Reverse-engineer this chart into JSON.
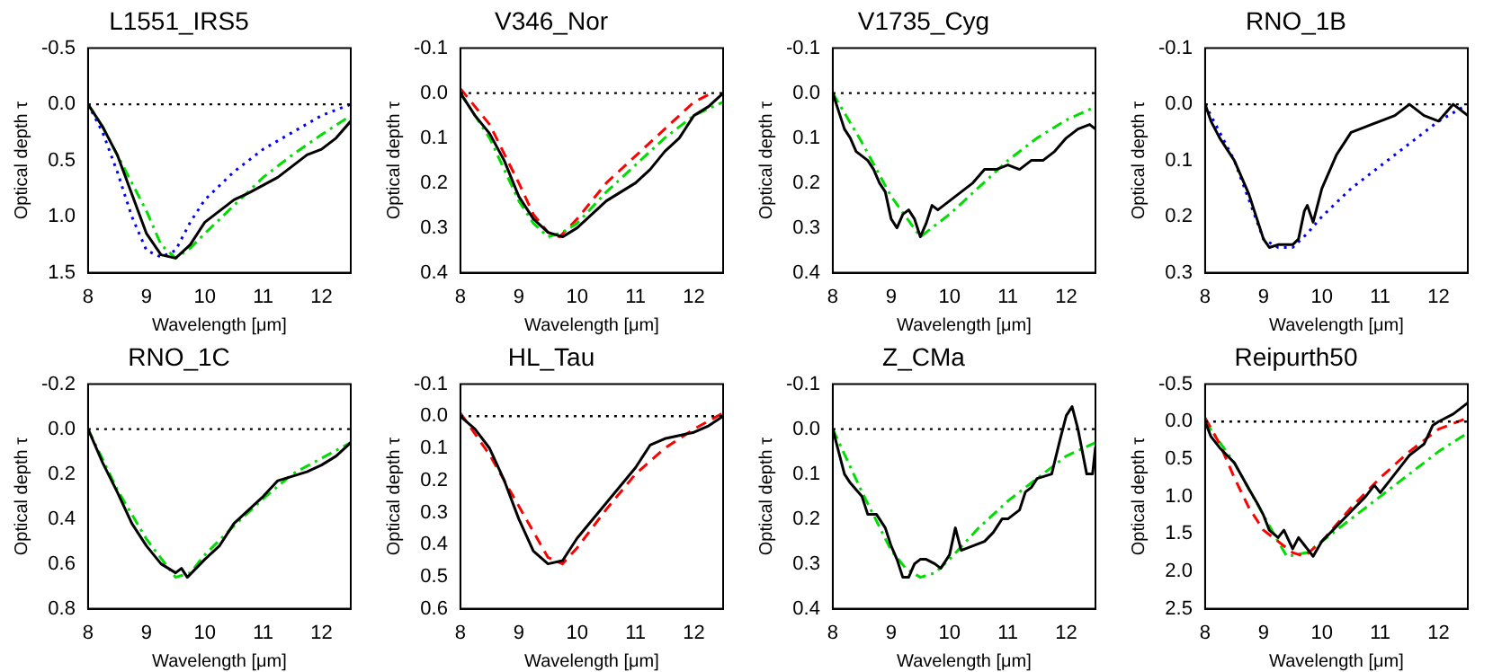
{
  "chart_data": [
    {
      "type": "line",
      "title": "L1551_IRS5",
      "xlabel": "Wavelength [μm]",
      "ylabel": "Optical depth τ",
      "xlim": [
        8,
        12.5
      ],
      "xticks": [
        8,
        9,
        10,
        11,
        12
      ],
      "ylim": [
        1.5,
        -0.5
      ],
      "yticks": [
        -0.5,
        {
          "value": 0,
          "label": "0.0"
        },
        0.5,
        {
          "value": 1,
          "label": "1.0"
        },
        1.5
      ],
      "grid": false,
      "ref_lines": [
        {
          "axis": "y",
          "value": 0,
          "color": "#000000",
          "line_style": "dotted"
        }
      ],
      "series": [
        {
          "color": "#000000",
          "line_style": "solid",
          "x": [
            8,
            8.25,
            8.5,
            8.75,
            9,
            9.25,
            9.5,
            9.75,
            10,
            10.25,
            10.5,
            10.75,
            11,
            11.25,
            11.5,
            11.75,
            12,
            12.25,
            12.5
          ],
          "values": [
            0,
            0.2,
            0.45,
            0.8,
            1.15,
            1.34,
            1.37,
            1.25,
            1.05,
            0.95,
            0.85,
            0.79,
            0.72,
            0.65,
            0.55,
            0.45,
            0.4,
            0.3,
            0.15
          ]
        },
        {
          "color": "#00dd00",
          "line_style": "dashdot",
          "x": [
            8,
            8.25,
            8.5,
            8.75,
            9,
            9.25,
            9.5,
            9.75,
            10,
            10.5,
            11,
            11.5,
            12,
            12.5
          ],
          "values": [
            0,
            0.2,
            0.45,
            0.7,
            0.95,
            1.25,
            1.37,
            1.28,
            1.15,
            0.9,
            0.65,
            0.45,
            0.27,
            0.1
          ]
        },
        {
          "color": "#0000ff",
          "line_style": "dotted",
          "x": [
            8,
            8.25,
            8.5,
            8.75,
            9,
            9.25,
            9.5,
            9.75,
            10,
            10.5,
            11,
            11.5,
            12,
            12.5
          ],
          "values": [
            0,
            0.25,
            0.6,
            1.0,
            1.3,
            1.36,
            1.3,
            1.05,
            0.85,
            0.6,
            0.4,
            0.25,
            0.1,
            0
          ]
        }
      ]
    },
    {
      "type": "line",
      "title": "V346_Nor",
      "xlabel": "Wavelength [μm]",
      "ylabel": "Optical depth τ",
      "xlim": [
        8,
        12.5
      ],
      "xticks": [
        8,
        9,
        10,
        11,
        12
      ],
      "ylim": [
        0.4,
        -0.1
      ],
      "yticks": [
        -0.1,
        {
          "value": 0,
          "label": "0.0"
        },
        0.1,
        0.2,
        0.3,
        0.4
      ],
      "grid": false,
      "ref_lines": [
        {
          "axis": "y",
          "value": 0,
          "color": "#000000",
          "line_style": "dotted"
        }
      ],
      "series": [
        {
          "color": "#000000",
          "line_style": "solid",
          "x": [
            8,
            8.25,
            8.5,
            8.75,
            9,
            9.25,
            9.5,
            9.75,
            10,
            10.25,
            10.5,
            10.75,
            11,
            11.25,
            11.5,
            11.75,
            12,
            12.25,
            12.5
          ],
          "values": [
            0,
            0.05,
            0.09,
            0.15,
            0.23,
            0.28,
            0.31,
            0.32,
            0.3,
            0.27,
            0.24,
            0.22,
            0.2,
            0.17,
            0.13,
            0.1,
            0.05,
            0.03,
            0
          ]
        },
        {
          "color": "#00dd00",
          "line_style": "dashdot",
          "x": [
            8,
            8.5,
            9,
            9.25,
            9.5,
            9.75,
            10,
            10.5,
            11,
            11.5,
            12,
            12.5
          ],
          "values": [
            0,
            0.1,
            0.24,
            0.29,
            0.32,
            0.31,
            0.29,
            0.22,
            0.16,
            0.1,
            0.05,
            0.02
          ]
        },
        {
          "color": "#ff0000",
          "line_style": "dashed",
          "x": [
            8,
            8.5,
            9,
            9.25,
            9.5,
            9.7,
            10,
            10.5,
            11,
            11.5,
            12,
            12.3
          ],
          "values": [
            -0.01,
            0.07,
            0.2,
            0.27,
            0.31,
            0.32,
            0.28,
            0.2,
            0.14,
            0.08,
            0.02,
            0
          ]
        }
      ]
    },
    {
      "type": "line",
      "title": "V1735_Cyg",
      "xlabel": "Wavelength [μm]",
      "ylabel": "Optical depth τ",
      "xlim": [
        8,
        12.5
      ],
      "xticks": [
        8,
        9,
        10,
        11,
        12
      ],
      "ylim": [
        0.4,
        -0.1
      ],
      "yticks": [
        -0.1,
        {
          "value": 0,
          "label": "0.0"
        },
        0.1,
        0.2,
        0.3,
        0.4
      ],
      "grid": false,
      "ref_lines": [
        {
          "axis": "y",
          "value": 0,
          "color": "#000000",
          "line_style": "dotted"
        }
      ],
      "series": [
        {
          "color": "#000000",
          "line_style": "solid",
          "x": [
            8,
            8.1,
            8.2,
            8.3,
            8.4,
            8.5,
            8.6,
            8.7,
            8.8,
            8.9,
            9,
            9.1,
            9.2,
            9.3,
            9.4,
            9.5,
            9.6,
            9.7,
            9.8,
            9.9,
            10,
            10.2,
            10.4,
            10.6,
            10.8,
            11,
            11.2,
            11.4,
            11.6,
            11.8,
            12,
            12.2,
            12.4,
            12.5
          ],
          "values": [
            0,
            0.04,
            0.08,
            0.1,
            0.13,
            0.14,
            0.15,
            0.17,
            0.2,
            0.22,
            0.28,
            0.3,
            0.27,
            0.26,
            0.28,
            0.32,
            0.29,
            0.25,
            0.26,
            0.25,
            0.24,
            0.22,
            0.2,
            0.17,
            0.17,
            0.16,
            0.17,
            0.15,
            0.15,
            0.13,
            0.1,
            0.08,
            0.07,
            0.08
          ]
        },
        {
          "color": "#00dd00",
          "line_style": "dashdot",
          "x": [
            8,
            8.5,
            9,
            9.5,
            10,
            10.5,
            11,
            11.5,
            12,
            12.5
          ],
          "values": [
            0,
            0.11,
            0.23,
            0.32,
            0.27,
            0.21,
            0.15,
            0.1,
            0.06,
            0.03
          ]
        }
      ]
    },
    {
      "type": "line",
      "title": "RNO_1B",
      "xlabel": "Wavelength [μm]",
      "ylabel": "Optical depth τ",
      "xlim": [
        8,
        12.5
      ],
      "xticks": [
        8,
        9,
        10,
        11,
        12
      ],
      "ylim": [
        0.3,
        -0.1
      ],
      "yticks": [
        -0.1,
        {
          "value": 0,
          "label": "0.0"
        },
        0.1,
        0.2,
        0.3
      ],
      "grid": false,
      "ref_lines": [
        {
          "axis": "y",
          "value": 0,
          "color": "#000000",
          "line_style": "dotted"
        }
      ],
      "series": [
        {
          "color": "#000000",
          "line_style": "solid",
          "x": [
            8,
            8.1,
            8.25,
            8.5,
            8.75,
            9,
            9.1,
            9.25,
            9.5,
            9.6,
            9.7,
            9.75,
            9.85,
            10,
            10.25,
            10.5,
            10.75,
            11,
            11.25,
            11.5,
            11.75,
            12,
            12.25,
            12.5
          ],
          "values": [
            0,
            0.03,
            0.06,
            0.1,
            0.16,
            0.24,
            0.255,
            0.25,
            0.25,
            0.24,
            0.19,
            0.18,
            0.21,
            0.15,
            0.09,
            0.05,
            0.04,
            0.03,
            0.02,
            0,
            0.02,
            0.03,
            0,
            0.02
          ]
        },
        {
          "color": "#0000ff",
          "line_style": "dotted",
          "x": [
            8,
            8.5,
            9,
            9.25,
            9.5,
            9.75,
            10,
            10.5,
            11,
            11.5,
            12,
            12.5
          ],
          "values": [
            0,
            0.1,
            0.24,
            0.255,
            0.255,
            0.23,
            0.2,
            0.15,
            0.11,
            0.07,
            0.03,
            0
          ]
        }
      ]
    },
    {
      "type": "line",
      "title": "RNO_1C",
      "xlabel": "Wavelength [μm]",
      "ylabel": "Optical depth τ",
      "xlim": [
        8,
        12.5
      ],
      "xticks": [
        8,
        9,
        10,
        11,
        12
      ],
      "ylim": [
        0.8,
        -0.2
      ],
      "yticks": [
        -0.2,
        {
          "value": 0,
          "label": "0.0"
        },
        0.2,
        0.4,
        0.6,
        0.8
      ],
      "grid": false,
      "ref_lines": [
        {
          "axis": "y",
          "value": 0,
          "color": "#000000",
          "line_style": "dotted"
        }
      ],
      "series": [
        {
          "color": "#000000",
          "line_style": "solid",
          "x": [
            8,
            8.25,
            8.5,
            8.75,
            9,
            9.25,
            9.5,
            9.6,
            9.7,
            9.85,
            10,
            10.25,
            10.5,
            10.75,
            11,
            11.25,
            11.5,
            11.75,
            12,
            12.25,
            12.5
          ],
          "values": [
            0,
            0.15,
            0.28,
            0.42,
            0.52,
            0.6,
            0.64,
            0.62,
            0.66,
            0.62,
            0.58,
            0.52,
            0.42,
            0.36,
            0.3,
            0.23,
            0.21,
            0.19,
            0.16,
            0.12,
            0.06
          ]
        },
        {
          "color": "#00dd00",
          "line_style": "dashdot",
          "x": [
            8,
            8.5,
            9,
            9.5,
            9.75,
            10,
            10.5,
            11,
            11.5,
            12,
            12.5
          ],
          "values": [
            0,
            0.27,
            0.49,
            0.66,
            0.64,
            0.56,
            0.43,
            0.31,
            0.2,
            0.13,
            0.06
          ]
        }
      ]
    },
    {
      "type": "line",
      "title": "HL_Tau",
      "xlabel": "Wavelength [μm]",
      "ylabel": "Optical depth τ",
      "xlim": [
        8,
        12.5
      ],
      "xticks": [
        8,
        9,
        10,
        11,
        12
      ],
      "ylim": [
        0.6,
        -0.1
      ],
      "yticks": [
        -0.1,
        {
          "value": 0,
          "label": "0.0"
        },
        0.1,
        0.2,
        0.3,
        0.4,
        0.5,
        0.6
      ],
      "grid": false,
      "ref_lines": [
        {
          "axis": "y",
          "value": 0,
          "color": "#000000",
          "line_style": "dotted"
        }
      ],
      "series": [
        {
          "color": "#000000",
          "line_style": "solid",
          "x": [
            8,
            8.25,
            8.5,
            8.75,
            9,
            9.25,
            9.5,
            9.75,
            10,
            10.5,
            11,
            11.25,
            11.5,
            11.75,
            12,
            12.25,
            12.5
          ],
          "values": [
            0,
            0.04,
            0.1,
            0.2,
            0.32,
            0.42,
            0.46,
            0.45,
            0.38,
            0.27,
            0.16,
            0.09,
            0.07,
            0.06,
            0.05,
            0.03,
            0
          ]
        },
        {
          "color": "#ff0000",
          "line_style": "dashed",
          "x": [
            8,
            8.5,
            9,
            9.5,
            9.75,
            10,
            10.5,
            11,
            11.5,
            12,
            12.5
          ],
          "values": [
            -0.01,
            0.12,
            0.28,
            0.44,
            0.46,
            0.41,
            0.29,
            0.18,
            0.1,
            0.04,
            -0.01
          ]
        }
      ]
    },
    {
      "type": "line",
      "title": "Z_CMa",
      "xlabel": "Wavelength [μm]",
      "ylabel": "Optical depth τ",
      "xlim": [
        8,
        12.5
      ],
      "xticks": [
        8,
        9,
        10,
        11,
        12
      ],
      "ylim": [
        0.4,
        -0.1
      ],
      "yticks": [
        -0.1,
        {
          "value": 0,
          "label": "0.0"
        },
        0.1,
        0.2,
        0.3,
        0.4
      ],
      "grid": false,
      "ref_lines": [
        {
          "axis": "y",
          "value": 0,
          "color": "#000000",
          "line_style": "dotted"
        }
      ],
      "series": [
        {
          "color": "#000000",
          "line_style": "solid",
          "x": [
            8,
            8.1,
            8.2,
            8.3,
            8.5,
            8.6,
            8.75,
            8.9,
            9,
            9.1,
            9.2,
            9.3,
            9.4,
            9.5,
            9.6,
            9.75,
            9.85,
            10,
            10.1,
            10.2,
            10.4,
            10.6,
            10.75,
            10.9,
            11,
            11.2,
            11.3,
            11.4,
            11.5,
            11.75,
            11.9,
            12,
            12.1,
            12.2,
            12.35,
            12.45,
            12.5
          ],
          "values": [
            0,
            0.05,
            0.1,
            0.12,
            0.15,
            0.19,
            0.19,
            0.22,
            0.26,
            0.29,
            0.33,
            0.33,
            0.3,
            0.29,
            0.29,
            0.3,
            0.31,
            0.28,
            0.22,
            0.27,
            0.26,
            0.25,
            0.23,
            0.2,
            0.2,
            0.18,
            0.14,
            0.13,
            0.11,
            0.1,
            0.02,
            -0.03,
            -0.05,
            0,
            0.1,
            0.1,
            0.04
          ]
        },
        {
          "color": "#00dd00",
          "line_style": "dashdot",
          "x": [
            8,
            8.5,
            9,
            9.25,
            9.5,
            9.75,
            10,
            10.5,
            11,
            11.5,
            12,
            12.5
          ],
          "values": [
            0,
            0.14,
            0.27,
            0.31,
            0.33,
            0.32,
            0.29,
            0.22,
            0.16,
            0.11,
            0.06,
            0.03
          ]
        }
      ]
    },
    {
      "type": "line",
      "title": "Reipurth50",
      "xlabel": "Wavelength [μm]",
      "ylabel": "Optical depth τ",
      "xlim": [
        8,
        12.5
      ],
      "xticks": [
        8,
        9,
        10,
        11,
        12
      ],
      "ylim": [
        2.5,
        -0.5
      ],
      "yticks": [
        -0.5,
        {
          "value": 0,
          "label": "0.0"
        },
        0.5,
        {
          "value": 1,
          "label": "1.0"
        },
        1.5,
        {
          "value": 2,
          "label": "2.0"
        },
        2.5
      ],
      "grid": false,
      "ref_lines": [
        {
          "axis": "y",
          "value": 0,
          "color": "#000000",
          "line_style": "dotted"
        }
      ],
      "series": [
        {
          "color": "#000000",
          "line_style": "solid",
          "x": [
            8,
            8.1,
            8.25,
            8.5,
            8.75,
            8.9,
            9,
            9.1,
            9.25,
            9.35,
            9.5,
            9.6,
            9.7,
            9.75,
            9.85,
            10,
            10.25,
            10.5,
            10.75,
            10.9,
            11,
            11.25,
            11.5,
            11.75,
            11.9,
            12,
            12.25,
            12.5
          ],
          "values": [
            0,
            0.2,
            0.35,
            0.55,
            0.9,
            1.1,
            1.25,
            1.45,
            1.55,
            1.45,
            1.7,
            1.55,
            1.65,
            1.7,
            1.8,
            1.6,
            1.4,
            1.2,
            1,
            0.85,
            0.95,
            0.7,
            0.45,
            0.3,
            0.05,
            0,
            -0.1,
            -0.25
          ]
        },
        {
          "color": "#ff0000",
          "line_style": "dashed",
          "x": [
            8,
            8.25,
            8.5,
            8.75,
            9,
            9.25,
            9.5,
            9.7,
            10,
            10.5,
            11,
            11.5,
            12,
            12.5
          ],
          "values": [
            -0.05,
            0.3,
            0.75,
            1.15,
            1.45,
            1.6,
            1.75,
            1.8,
            1.6,
            1.15,
            0.75,
            0.4,
            0.1,
            -0.05
          ]
        },
        {
          "color": "#00dd00",
          "line_style": "dashdot",
          "x": [
            8,
            8.5,
            9,
            9.25,
            9.4,
            9.75,
            10,
            10.5,
            11,
            11.5,
            12,
            12.5
          ],
          "values": [
            0,
            0.55,
            1.25,
            1.6,
            1.8,
            1.75,
            1.6,
            1.3,
            1,
            0.7,
            0.4,
            0.15
          ]
        }
      ]
    }
  ]
}
